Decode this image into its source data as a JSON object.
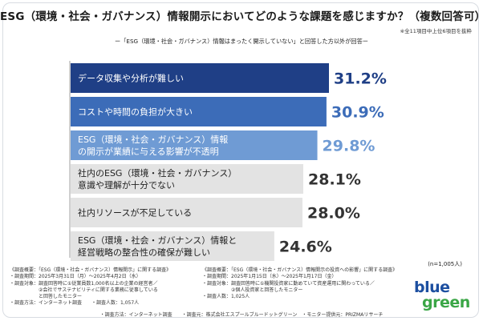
{
  "header": {
    "title": "ESG（環境・社会・ガバナンス）情報開示においてどのような課題を感じますか？（複数回答可）",
    "note": "※全11項目中上位6項目を抜粋",
    "subtitle": "ー「ESG（環境・社会・ガバナンス）情報はまったく開示していない」と回答した方以外が回答ー"
  },
  "chart_data": {
    "type": "bar",
    "orientation": "horizontal",
    "unit": "%",
    "categories": [
      [
        "データ収集や分析が難しい"
      ],
      [
        "コストや時間の負担が大きい"
      ],
      [
        "ESG（環境・社会・ガバナンス）情報",
        "の開示が業績に与える影響が不透明"
      ],
      [
        "社内のESG（環境・社会・ガバナンス）",
        "意識や理解が十分でない"
      ],
      [
        "社内リソースが不足している"
      ],
      [
        "ESG（環境・社会・ガバナンス）情報と",
        "経営戦略の整合性の確保が難しい"
      ]
    ],
    "values": [
      31.2,
      30.9,
      29.8,
      28.1,
      28.0,
      24.6
    ],
    "value_labels": [
      "31.2%",
      "30.9%",
      "29.8%",
      "28.1%",
      "28.0%",
      "24.6%"
    ],
    "bar_colors": [
      "#1f3f86",
      "#3c6cb8",
      "#6f9bd4",
      "#e3e3e3",
      "#e3e3e3",
      "#e3e3e3"
    ],
    "text_colors": [
      "#ffffff",
      "#ffffff",
      "#ffffff",
      "#222222",
      "#222222",
      "#222222"
    ],
    "value_colors": [
      "#1f3f86",
      "#3c6cb8",
      "#6f9bd4",
      "#333333",
      "#333333",
      "#333333"
    ],
    "xlim": [
      0,
      31.2
    ]
  },
  "sample": {
    "n_label": "(n=1,005人)"
  },
  "survey_left": {
    "lines": [
      "《調査概要：「ESG（環境・社会・ガバナンス）情報開示」に関する調査》",
      "・調査期間：2025年3月31日（月）〜2025年4月2日（水）",
      "・調査対象：調査回答時に①従業員数1,000名以上の企業の経営者／",
      "　　　　　　②会社でサステナビリティに関する業務に従事している",
      "　　　　　　と回答したモニター",
      "・調査方法：インターネット調査　　・調査人数：1,057人"
    ]
  },
  "survey_right": {
    "lines": [
      "《調査概要：「ESG（環境・社会・ガバナンス）情報開示の投資への影響」に関する調査》",
      "・調査期間：2025年1月15日（水）〜2025年1月17日（金）",
      "・調査対象：調査回答時に①機関投資家に勤めていて資産運用に関わっている／",
      "　　　　　　②個人投資家と回答したモニター",
      "・調査人数：1,025人"
    ]
  },
  "footer": {
    "text": "・調査方法：インターネット調査　　・調査元：株式会社エスプールブルードットグリーン　・モニター提供元：PRIZMAリサーチ"
  },
  "logo": {
    "word1": "blue",
    "word2": "green",
    "color_blue": "#1c4fa0",
    "color_green": "#3aa646"
  }
}
